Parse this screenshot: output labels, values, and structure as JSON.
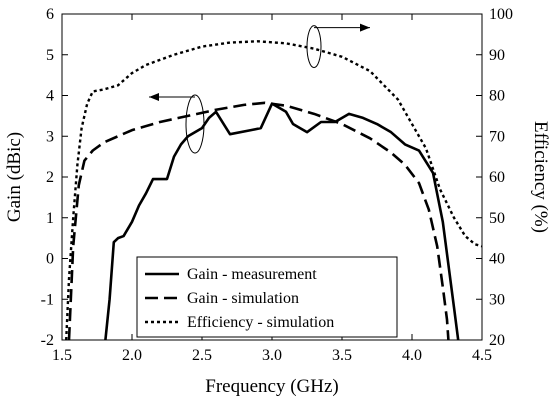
{
  "chart_data": {
    "type": "line",
    "title": "",
    "xlabel": "Frequency (GHz)",
    "ylabel": "Gain (dBic)",
    "y2label": "Efficiency (%)",
    "xlim": [
      1.5,
      4.5
    ],
    "ylim": [
      -2,
      6
    ],
    "y2lim": [
      20,
      100
    ],
    "xticks": [
      "1.5",
      "2.0",
      "2.5",
      "3.0",
      "3.5",
      "4.0",
      "4.5"
    ],
    "yticks": [
      "-2",
      "-1",
      "0",
      "1",
      "2",
      "3",
      "4",
      "5",
      "6"
    ],
    "y2ticks": [
      "20",
      "30",
      "40",
      "50",
      "60",
      "70",
      "80",
      "90",
      "100"
    ],
    "grid": false,
    "legend_position": "bottom-center",
    "series": [
      {
        "name": "Gain - measurement",
        "axis": "left",
        "style": "solid",
        "points": [
          [
            1.81,
            -2.0
          ],
          [
            1.84,
            -1.0
          ],
          [
            1.87,
            0.4
          ],
          [
            1.9,
            0.5
          ],
          [
            1.94,
            0.55
          ],
          [
            2.0,
            0.9
          ],
          [
            2.05,
            1.3
          ],
          [
            2.1,
            1.6
          ],
          [
            2.15,
            1.95
          ],
          [
            2.2,
            1.95
          ],
          [
            2.25,
            1.95
          ],
          [
            2.3,
            2.5
          ],
          [
            2.35,
            2.8
          ],
          [
            2.4,
            3.0
          ],
          [
            2.5,
            3.2
          ],
          [
            2.55,
            3.45
          ],
          [
            2.6,
            3.6
          ],
          [
            2.7,
            3.05
          ],
          [
            2.85,
            3.15
          ],
          [
            2.92,
            3.2
          ],
          [
            3.0,
            3.8
          ],
          [
            3.1,
            3.6
          ],
          [
            3.15,
            3.3
          ],
          [
            3.25,
            3.1
          ],
          [
            3.35,
            3.35
          ],
          [
            3.45,
            3.35
          ],
          [
            3.55,
            3.55
          ],
          [
            3.65,
            3.45
          ],
          [
            3.75,
            3.3
          ],
          [
            3.85,
            3.1
          ],
          [
            3.95,
            2.8
          ],
          [
            4.05,
            2.65
          ],
          [
            4.15,
            2.1
          ],
          [
            4.22,
            0.9
          ],
          [
            4.3,
            -1.2
          ],
          [
            4.33,
            -2.0
          ]
        ]
      },
      {
        "name": "Gain - simulation",
        "axis": "left",
        "style": "dashed",
        "points": [
          [
            1.55,
            -2.0
          ],
          [
            1.58,
            0.3
          ],
          [
            1.62,
            1.8
          ],
          [
            1.66,
            2.4
          ],
          [
            1.72,
            2.65
          ],
          [
            1.8,
            2.85
          ],
          [
            1.9,
            3.0
          ],
          [
            2.0,
            3.15
          ],
          [
            2.2,
            3.35
          ],
          [
            2.4,
            3.5
          ],
          [
            2.6,
            3.65
          ],
          [
            2.8,
            3.77
          ],
          [
            2.95,
            3.82
          ],
          [
            3.1,
            3.75
          ],
          [
            3.3,
            3.55
          ],
          [
            3.5,
            3.3
          ],
          [
            3.7,
            2.95
          ],
          [
            3.85,
            2.6
          ],
          [
            3.95,
            2.3
          ],
          [
            4.05,
            1.85
          ],
          [
            4.12,
            1.2
          ],
          [
            4.18,
            0.3
          ],
          [
            4.22,
            -0.7
          ],
          [
            4.25,
            -1.5
          ],
          [
            4.26,
            -2.0
          ]
        ]
      },
      {
        "name": "Efficiency - simulation",
        "axis": "right",
        "style": "dotted",
        "points": [
          [
            1.53,
            20.0
          ],
          [
            1.55,
            35.0
          ],
          [
            1.58,
            50.0
          ],
          [
            1.61,
            63.0
          ],
          [
            1.64,
            72.0
          ],
          [
            1.68,
            78.0
          ],
          [
            1.72,
            81.0
          ],
          [
            1.8,
            81.5
          ],
          [
            1.9,
            82.5
          ],
          [
            2.0,
            85.5
          ],
          [
            2.1,
            87.5
          ],
          [
            2.3,
            90.0
          ],
          [
            2.5,
            92.0
          ],
          [
            2.7,
            93.0
          ],
          [
            2.9,
            93.3
          ],
          [
            3.1,
            92.8
          ],
          [
            3.3,
            91.5
          ],
          [
            3.5,
            89.5
          ],
          [
            3.7,
            86.0
          ],
          [
            3.9,
            79.0
          ],
          [
            4.1,
            67.0
          ],
          [
            4.2,
            57.0
          ],
          [
            4.3,
            50.0
          ],
          [
            4.38,
            45.5
          ],
          [
            4.45,
            43.5
          ],
          [
            4.5,
            43.0
          ]
        ]
      }
    ],
    "annotations": [
      {
        "target": "gain-series",
        "direction": "left",
        "x": 2.45,
        "y": 3.3
      },
      {
        "target": "efficiency-series",
        "direction": "right",
        "x": 3.3,
        "y": 92.0
      }
    ]
  }
}
